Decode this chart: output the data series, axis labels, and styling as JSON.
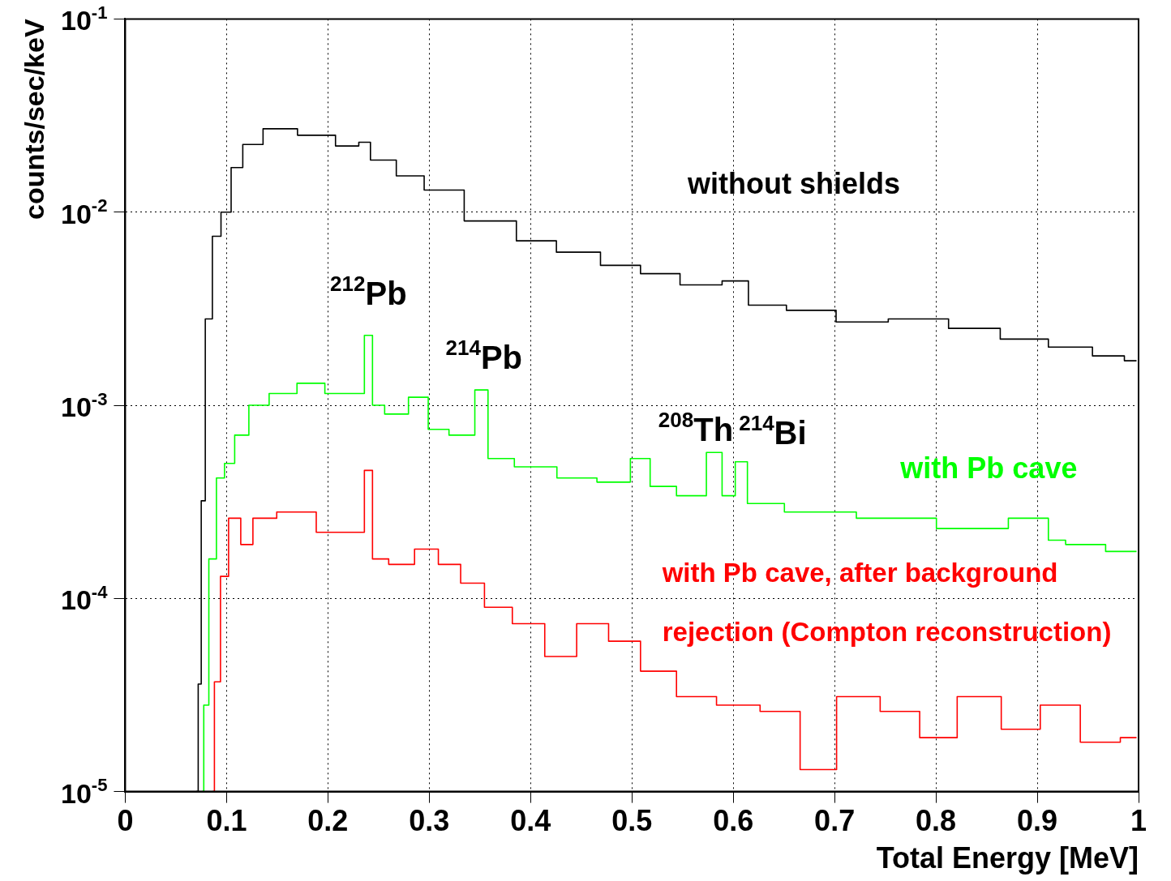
{
  "chart_data": {
    "type": "step",
    "xlabel": "Total Energy [MeV]",
    "ylabel": "counts/sec/keV",
    "log": "y",
    "grid": true,
    "legend": false,
    "xlim": [
      0,
      1
    ],
    "xticks": [
      0,
      0.1,
      0.2,
      0.3,
      0.4,
      0.5,
      0.6,
      0.7,
      0.8,
      0.9,
      1
    ],
    "ylim": [
      1e-05,
      0.1
    ],
    "yticks": [
      {
        "value": 1e-05,
        "label": "10$^{-5}$"
      },
      {
        "value": 0.0001,
        "label": "10$^{-4}$"
      },
      {
        "value": 0.001,
        "label": "10$^{-3}$"
      },
      {
        "value": 0.01,
        "label": "10$^{-2}$"
      },
      {
        "value": 0.1,
        "label": "10$^{-1}$"
      }
    ],
    "series": [
      {
        "name": "without shields",
        "color": "#000000",
        "x": [
          0.07,
          0.074,
          0.076,
          0.082,
          0.09,
          0.099,
          0.11,
          0.122,
          0.15,
          0.19,
          0.225,
          0.236,
          0.248,
          0.287,
          0.303,
          0.366,
          0.406,
          0.445,
          0.493,
          0.524,
          0.571,
          0.607,
          0.623,
          0.682,
          0.721,
          0.785,
          0.84,
          0.887,
          0.935,
          0.974,
          0.998
        ],
        "values": [
          1e-05,
          3.6e-05,
          0.00032,
          0.0028,
          0.0075,
          0.01,
          0.017,
          0.0224,
          0.027,
          0.025,
          0.022,
          0.023,
          0.0186,
          0.0154,
          0.013,
          0.009,
          0.0071,
          0.0062,
          0.0053,
          0.0048,
          0.0042,
          0.0044,
          0.0033,
          0.0031,
          0.0027,
          0.0028,
          0.0025,
          0.0022,
          0.002,
          0.0018,
          0.0017
        ]
      },
      {
        "name": "with Pb cave",
        "color": "#00ff00",
        "x": [
          0.076,
          0.079,
          0.086,
          0.094,
          0.102,
          0.114,
          0.13,
          0.154,
          0.185,
          0.209,
          0.232,
          0.24,
          0.248,
          0.264,
          0.295,
          0.303,
          0.336,
          0.354,
          0.362,
          0.406,
          0.446,
          0.485,
          0.512,
          0.524,
          0.564,
          0.583,
          0.595,
          0.609,
          0.619,
          0.682,
          0.761,
          0.84,
          0.903,
          0.919,
          0.937,
          0.998
        ],
        "values": [
          1e-05,
          2.8e-05,
          0.00016,
          0.00042,
          0.0005,
          0.0007,
          0.001,
          0.00115,
          0.0013,
          0.00115,
          0.00115,
          0.0023,
          0.001,
          0.0009,
          0.0011,
          0.00075,
          0.0007,
          0.0012,
          0.00053,
          0.00048,
          0.00042,
          0.0004,
          0.00053,
          0.00038,
          0.00034,
          0.00057,
          0.00034,
          0.00051,
          0.00031,
          0.00028,
          0.00026,
          0.00023,
          0.00026,
          0.0002,
          0.00019,
          0.000175
        ]
      },
      {
        "name": "with Pb cave, after background rejection (Compton reconstruction)",
        "color": "#ff0000",
        "x": [
          0.086,
          0.09,
          0.098,
          0.106,
          0.122,
          0.13,
          0.169,
          0.208,
          0.232,
          0.24,
          0.248,
          0.272,
          0.299,
          0.319,
          0.343,
          0.366,
          0.398,
          0.43,
          0.461,
          0.493,
          0.524,
          0.564,
          0.603,
          0.65,
          0.682,
          0.722,
          0.768,
          0.8,
          0.842,
          0.887,
          0.919,
          0.966,
          0.998
        ],
        "values": [
          1e-05,
          3.7e-05,
          0.00013,
          0.00026,
          0.00019,
          0.00026,
          0.00028,
          0.00022,
          0.00022,
          0.00046,
          0.00016,
          0.00015,
          0.00018,
          0.00015,
          0.00012,
          9e-05,
          7.4e-05,
          5e-05,
          7.4e-05,
          6e-05,
          4.2e-05,
          3.1e-05,
          2.8e-05,
          2.6e-05,
          1.3e-05,
          3.1e-05,
          2.6e-05,
          1.9e-05,
          3.1e-05,
          2.1e-05,
          2.8e-05,
          1.8e-05,
          1.9e-05
        ]
      }
    ],
    "annotations": [
      {
        "text": "$^{212}$Pb",
        "x": 0.24,
        "y": 0.0023
      },
      {
        "text": "$^{214}$Pb",
        "x": 0.354,
        "y": 0.0012
      },
      {
        "text": "$^{208}$Th",
        "x": 0.583,
        "y": 0.00057
      },
      {
        "text": "$^{214}$Bi",
        "x": 0.609,
        "y": 0.00051
      }
    ]
  }
}
